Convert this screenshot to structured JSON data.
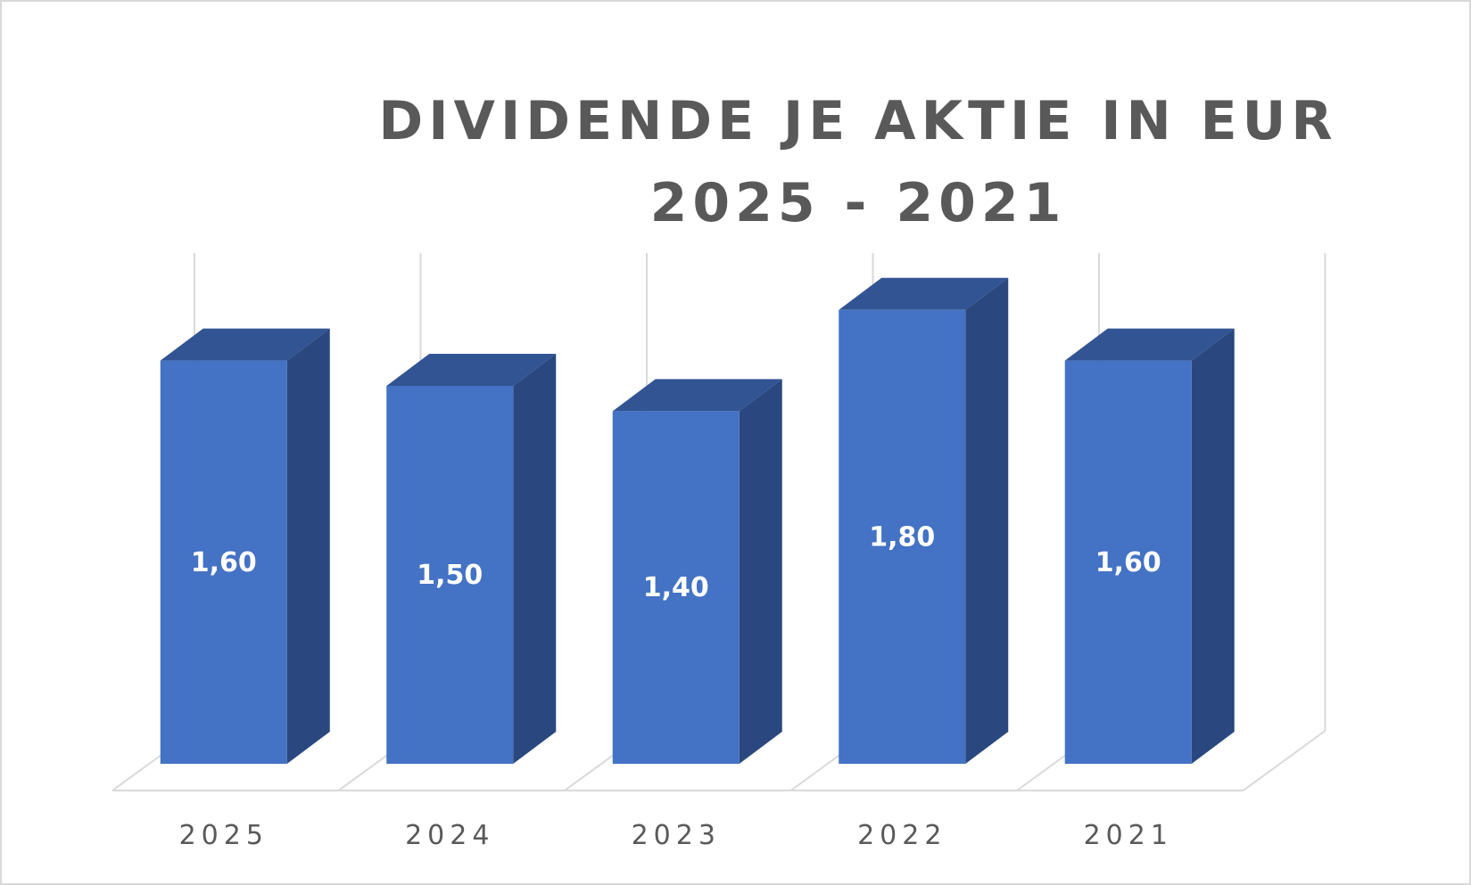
{
  "chart_data": {
    "type": "bar",
    "three_d": true,
    "title": "DIVIDENDE JE AKTIE IN EUR 2025 - 2021",
    "categories": [
      "2025",
      "2024",
      "2023",
      "2022",
      "2021"
    ],
    "values": [
      1.6,
      1.5,
      1.4,
      1.8,
      1.6
    ],
    "data_labels": [
      "1,60",
      "1,50",
      "1,40",
      "1,80",
      "1,60"
    ],
    "xlabel": "",
    "ylabel": "",
    "ylim": [
      0,
      2.0
    ],
    "grid": "vertical-category-lines",
    "legend": "none",
    "colors": {
      "front": "#4472c4",
      "top": "#325493",
      "side": "#2a487f",
      "gridline": "#d9d9d9",
      "text": "#595959",
      "label": "#ffffff"
    }
  }
}
